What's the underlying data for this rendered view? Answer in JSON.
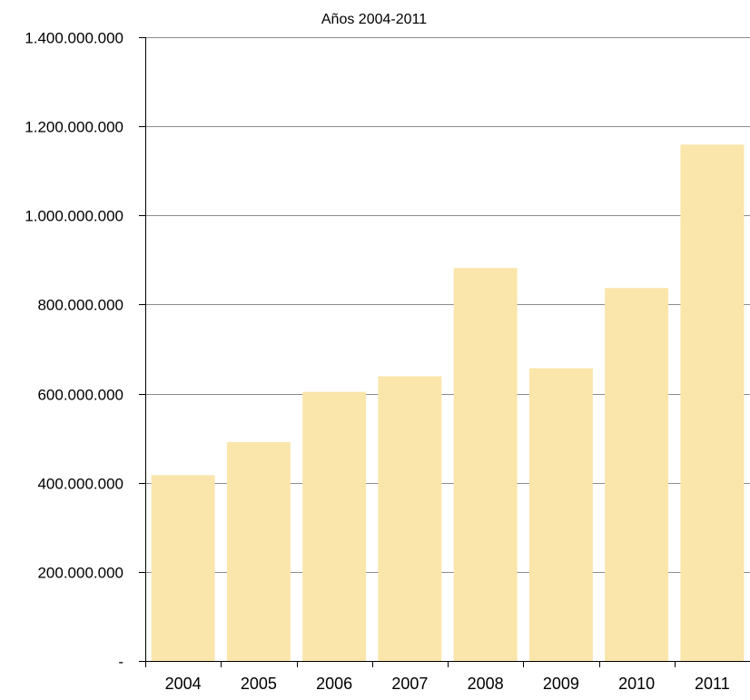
{
  "chart_data": {
    "type": "bar",
    "title": "Años 2004-2011",
    "categories": [
      "2004",
      "2005",
      "2006",
      "2007",
      "2008",
      "2009",
      "2010",
      "2011"
    ],
    "values": [
      417000000,
      491000000,
      604000000,
      639000000,
      882000000,
      657000000,
      837000000,
      1159000000
    ],
    "ylim": [
      0,
      1400000000
    ],
    "yticks": [
      0,
      200000000,
      400000000,
      600000000,
      800000000,
      1000000000,
      1200000000,
      1400000000
    ],
    "ytick_labels": [
      "-",
      "200.000.000",
      "400.000.000",
      "600.000.000",
      "800.000.000",
      "1.000.000.000",
      "1.200.000.000",
      "1.400.000.000"
    ],
    "grid": true,
    "colors": {
      "bar": "#fae5ab",
      "grid": "#8c8c8c",
      "axis": "#000000"
    }
  }
}
